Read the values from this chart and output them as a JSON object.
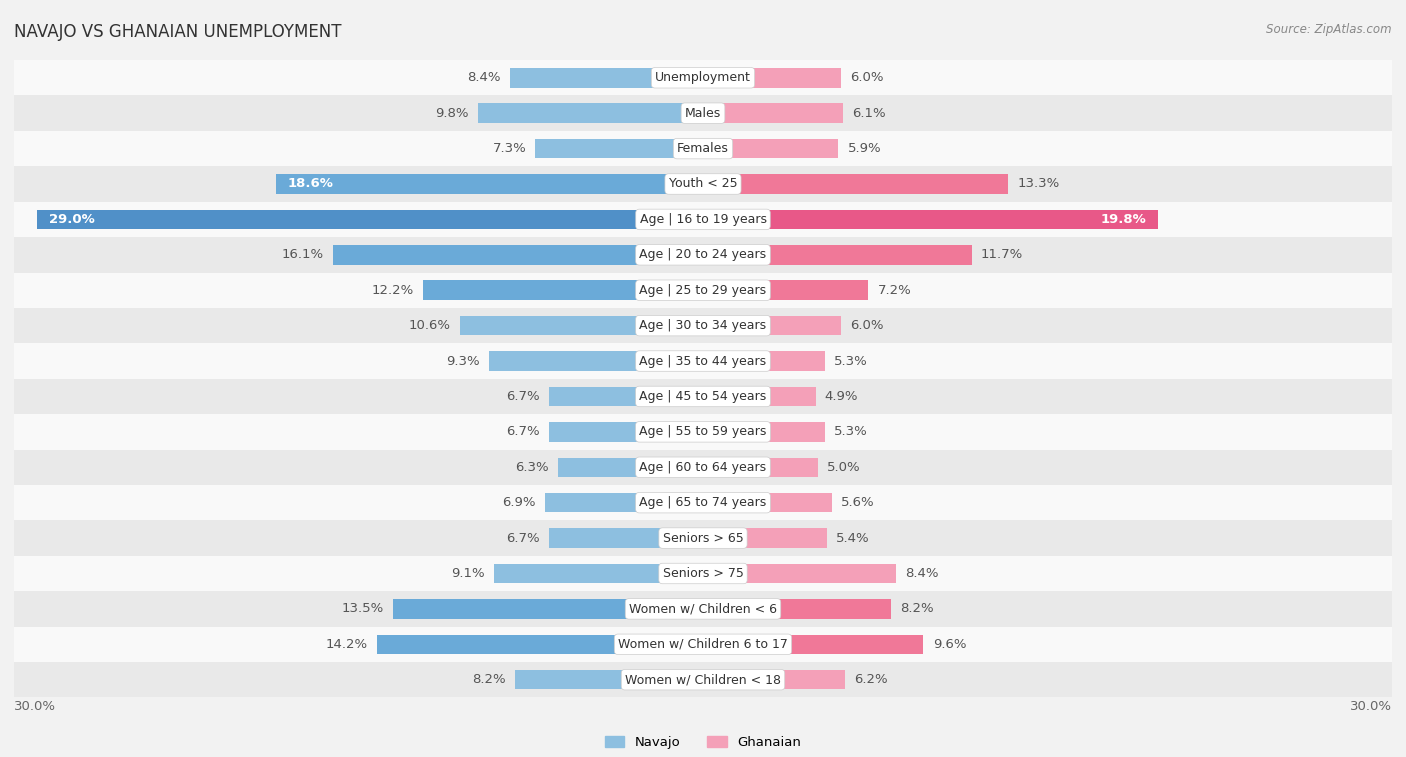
{
  "title": "NAVAJO VS GHANAIAN UNEMPLOYMENT",
  "source": "Source: ZipAtlas.com",
  "categories": [
    "Unemployment",
    "Males",
    "Females",
    "Youth < 25",
    "Age | 16 to 19 years",
    "Age | 20 to 24 years",
    "Age | 25 to 29 years",
    "Age | 30 to 34 years",
    "Age | 35 to 44 years",
    "Age | 45 to 54 years",
    "Age | 55 to 59 years",
    "Age | 60 to 64 years",
    "Age | 65 to 74 years",
    "Seniors > 65",
    "Seniors > 75",
    "Women w/ Children < 6",
    "Women w/ Children 6 to 17",
    "Women w/ Children < 18"
  ],
  "navajo": [
    8.4,
    9.8,
    7.3,
    18.6,
    29.0,
    16.1,
    12.2,
    10.6,
    9.3,
    6.7,
    6.7,
    6.3,
    6.9,
    6.7,
    9.1,
    13.5,
    14.2,
    8.2
  ],
  "ghanaian": [
    6.0,
    6.1,
    5.9,
    13.3,
    19.8,
    11.7,
    7.2,
    6.0,
    5.3,
    4.9,
    5.3,
    5.0,
    5.6,
    5.4,
    8.4,
    8.2,
    9.6,
    6.2
  ],
  "navajo_color": "#8dbfe0",
  "ghanaian_color": "#f4a0b8",
  "navajo_highlight": "#6aaad8",
  "ghanaian_highlight": "#f07898",
  "navajo_strong": "#5090c8",
  "ghanaian_strong": "#e85888",
  "bg_color": "#f2f2f2",
  "row_color_odd": "#f9f9f9",
  "row_color_even": "#e9e9e9",
  "max_val": 30.0,
  "label_fontsize": 9.5,
  "title_fontsize": 12,
  "source_fontsize": 8.5,
  "cat_fontsize": 9.0
}
